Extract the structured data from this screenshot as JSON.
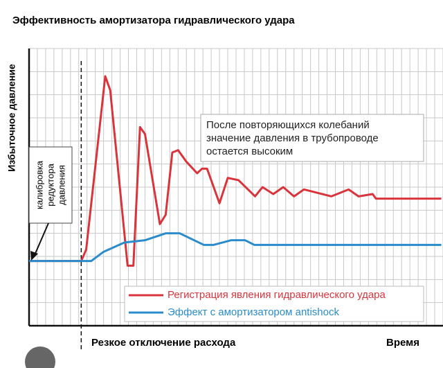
{
  "chart_data": {
    "type": "line",
    "title": "Эффективность амортизатора гидравлического удара",
    "ylabel": "Избыточное давление",
    "xlabel": "Время",
    "event_label": "Резкое отключение расхода",
    "event_x": 6.3,
    "note": [
      "После повторяющихся колебаний",
      "значение давления в трубопроводе",
      "остается высоким"
    ],
    "calibration": [
      "калибровка",
      "редуктора",
      "давления"
    ],
    "xlim": [
      0,
      50
    ],
    "ylim": [
      0,
      12
    ],
    "grid": true,
    "legend": "bottom-right",
    "series": [
      {
        "name": "Регистрация явления гидравлического удара",
        "color": "#d9343c",
        "x": [
          0,
          6.3,
          6.9,
          9.2,
          9.8,
          11.9,
          12.6,
          13.4,
          14,
          15.8,
          16.5,
          17.3,
          18,
          19,
          20.3,
          20.9,
          21.5,
          23,
          24,
          25.3,
          27.3,
          28.2,
          29.5,
          30.7,
          32,
          33.2,
          36.5,
          38.6,
          39.8,
          41.5,
          41.9,
          49.8
        ],
        "values": [
          2.8,
          2.8,
          3.3,
          10.8,
          10.2,
          2.6,
          2.6,
          8.6,
          8.3,
          4.4,
          4.8,
          7.5,
          7.6,
          7.1,
          6.6,
          6.8,
          6.8,
          5.3,
          6.4,
          6.3,
          5.6,
          6.0,
          5.7,
          6.0,
          5.6,
          5.9,
          5.6,
          5.9,
          5.6,
          5.7,
          5.5,
          5.5
        ]
      },
      {
        "name": "Эффект с амортизатором antishock",
        "color": "#2a8ccc",
        "x": [
          0,
          7.5,
          9,
          11.5,
          14,
          16.5,
          18.2,
          21.1,
          22.3,
          24.4,
          26.1,
          27.2,
          49.8
        ],
        "values": [
          2.8,
          2.8,
          3.2,
          3.6,
          3.7,
          4.0,
          4.0,
          3.5,
          3.5,
          3.7,
          3.7,
          3.5,
          3.5
        ]
      }
    ]
  }
}
